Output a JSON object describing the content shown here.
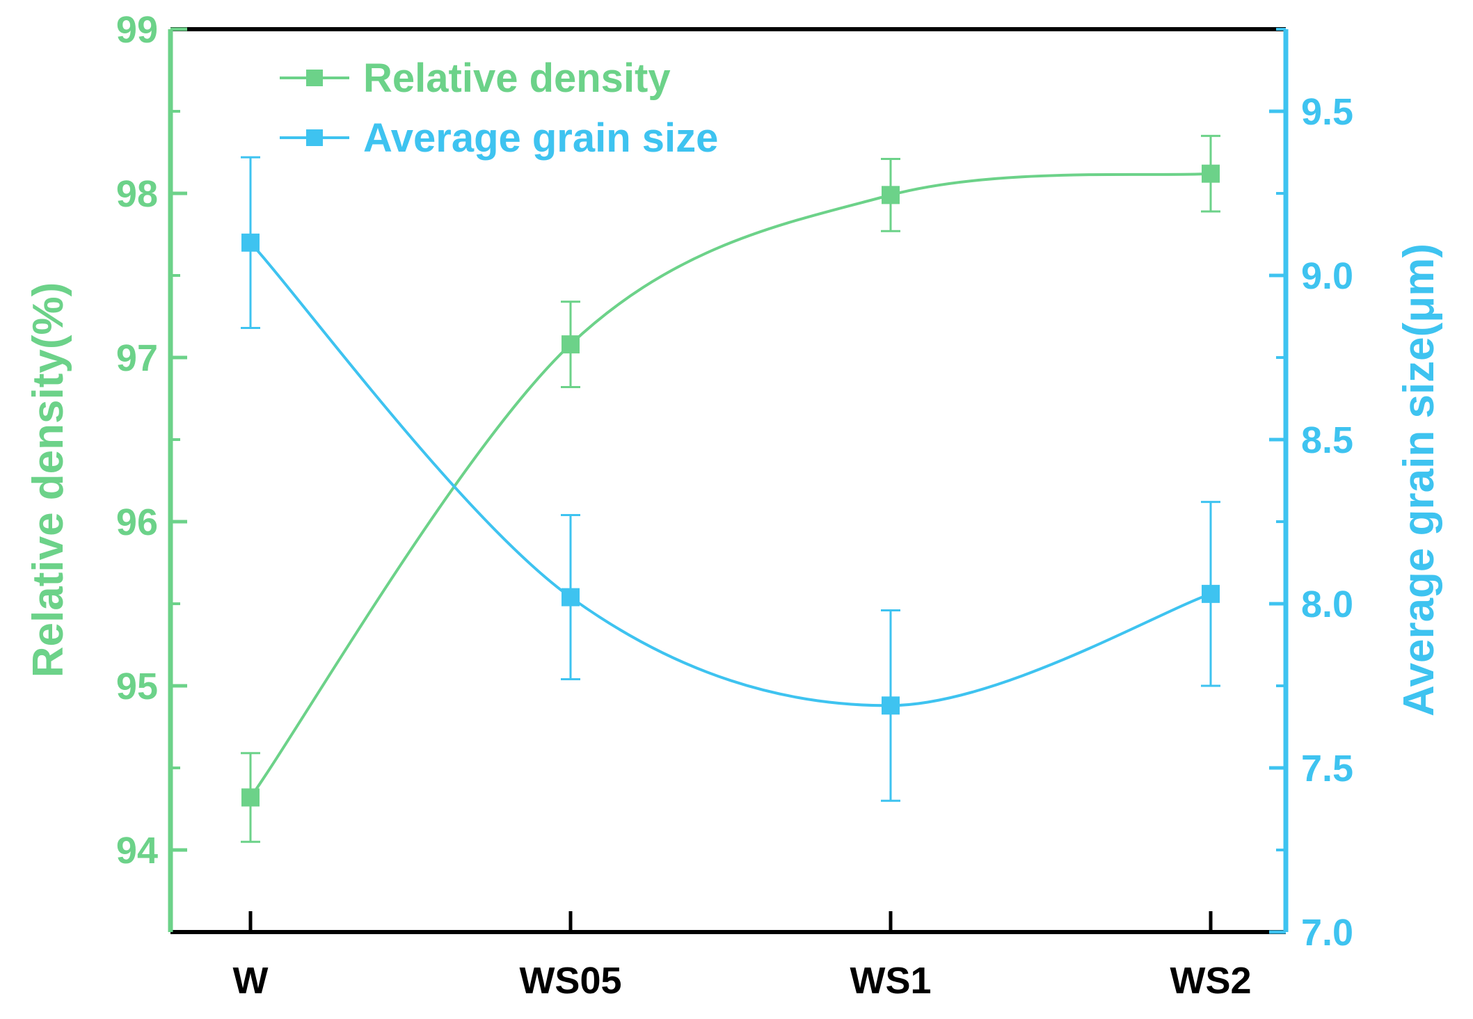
{
  "chart_data": {
    "type": "line",
    "categories": [
      "W",
      "WS05",
      "WS1",
      "WS2"
    ],
    "left_axis": {
      "label": "Relative density(%)",
      "ylim": [
        93.5,
        99
      ],
      "ticks": [
        "94",
        "95",
        "96",
        "97",
        "98",
        "99"
      ],
      "color": "#6cd289"
    },
    "right_axis": {
      "label": "Average grain size(μm)",
      "ylim": [
        7.0,
        9.75
      ],
      "ticks": [
        "7.0",
        "7.5",
        "8.0",
        "8.5",
        "9.0",
        "9.5"
      ],
      "color": "#3ec3f0"
    },
    "series": [
      {
        "name": "Relative density",
        "axis": "left",
        "color": "#6cd289",
        "values": [
          94.32,
          97.08,
          97.99,
          98.12
        ],
        "errors": [
          0.27,
          0.26,
          0.22,
          0.23
        ]
      },
      {
        "name": "Average grain size",
        "axis": "right",
        "color": "#3ec3f0",
        "values": [
          9.1,
          8.02,
          7.69,
          8.03
        ],
        "errors": [
          0.26,
          0.25,
          0.29,
          0.28
        ]
      }
    ],
    "legend_position": "top-left",
    "grid": false
  }
}
